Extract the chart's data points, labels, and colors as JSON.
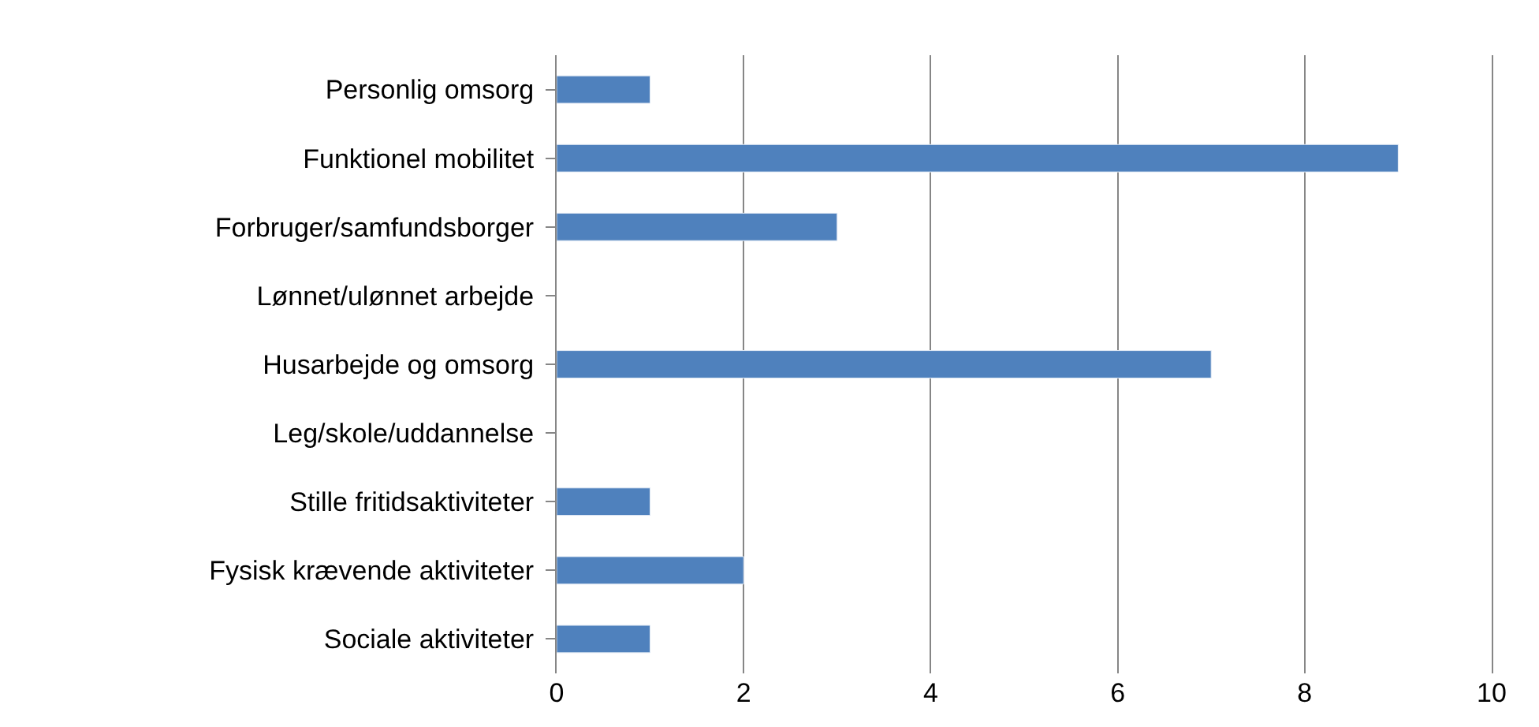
{
  "chart_data": {
    "type": "bar",
    "orientation": "horizontal",
    "categories": [
      "Personlig omsorg",
      "Funktionel mobilitet",
      "Forbruger/samfundsborger",
      "Lønnet/ulønnet arbejde",
      "Husarbejde og omsorg",
      "Leg/skole/uddannelse",
      "Stille fritidsaktiviteter",
      "Fysisk krævende aktiviteter",
      "Sociale aktiviteter"
    ],
    "values": [
      1,
      9,
      3,
      null,
      7,
      null,
      1,
      2,
      1
    ],
    "color": "#4f81bd",
    "xlim": [
      0,
      10
    ],
    "xticks": [
      0,
      2,
      4,
      6,
      8,
      10
    ],
    "grid": "x",
    "legend": false
  }
}
